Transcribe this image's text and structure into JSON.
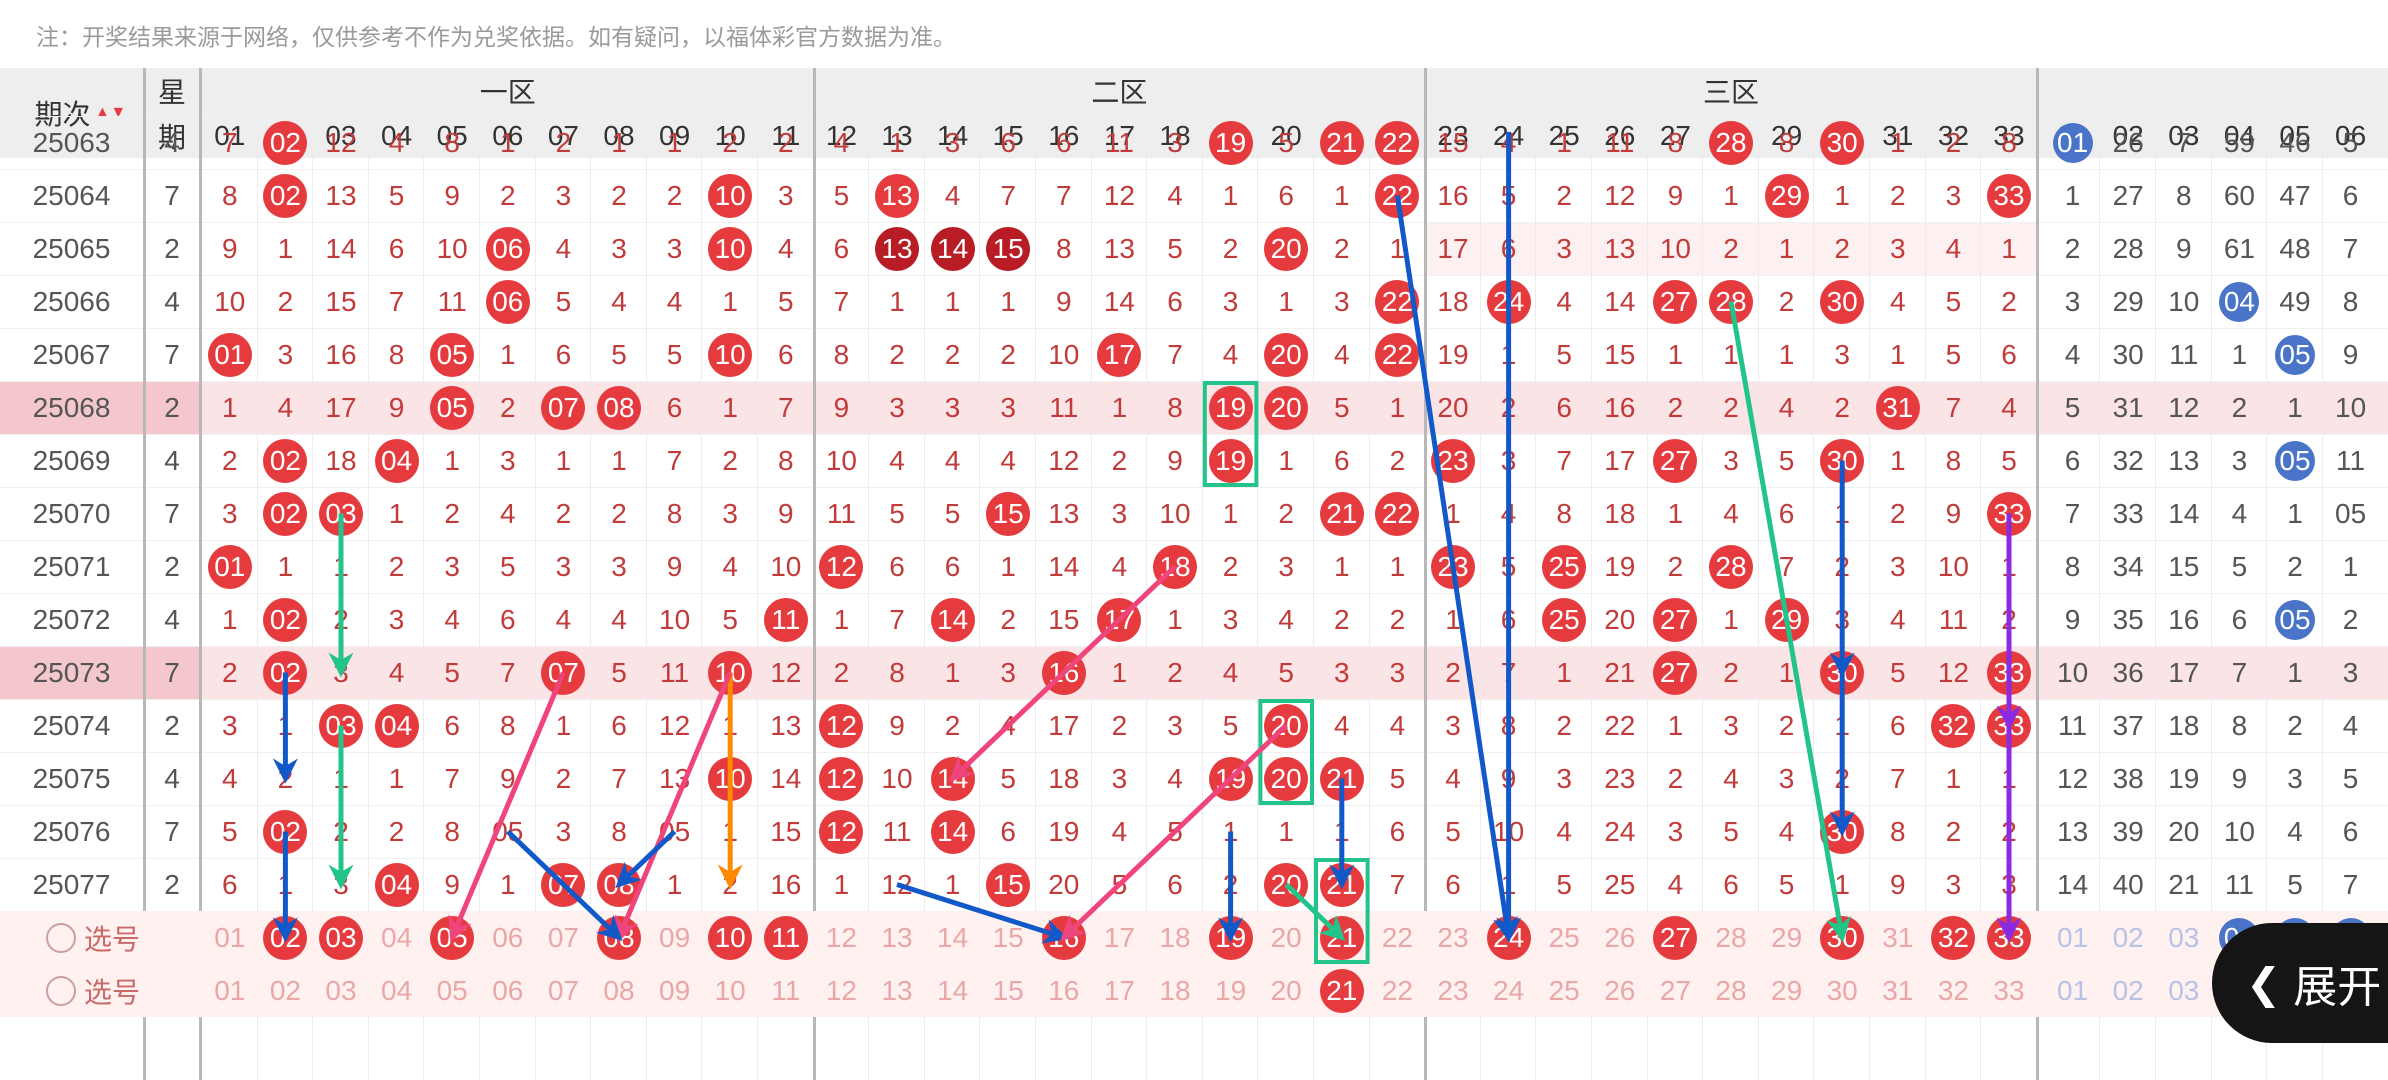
{
  "note": "注：开奖结果来源于网络，仅供参考不作为兑奖依据。如有疑问，以福体彩官方数据为准。",
  "header": {
    "issue_label": "期次",
    "sort_arrows": "▲▼",
    "week_label_top": "星",
    "week_label_bottom": "期",
    "zones": [
      "一区",
      "二区",
      "三区"
    ]
  },
  "expand_label": "展开",
  "picker_label": "选号",
  "rows": [
    {
      "issue": "25063",
      "week": "4",
      "hl": false
    },
    {
      "issue": "25064",
      "week": "7",
      "hl": false
    },
    {
      "issue": "25065",
      "week": "2",
      "hl": false
    },
    {
      "issue": "25066",
      "week": "4",
      "hl": false
    },
    {
      "issue": "25067",
      "week": "7",
      "hl": false
    },
    {
      "issue": "25068",
      "week": "2",
      "hl": true
    },
    {
      "issue": "25069",
      "week": "4",
      "hl": false
    },
    {
      "issue": "25070",
      "week": "7",
      "hl": false
    },
    {
      "issue": "25071",
      "week": "2",
      "hl": false
    },
    {
      "issue": "25072",
      "week": "4",
      "hl": false
    },
    {
      "issue": "25073",
      "week": "7",
      "hl": true
    },
    {
      "issue": "25074",
      "week": "2",
      "hl": false
    },
    {
      "issue": "25075",
      "week": "4",
      "hl": false
    },
    {
      "issue": "25076",
      "week": "7",
      "hl": false
    },
    {
      "issue": "25077",
      "week": "2",
      "hl": false
    }
  ],
  "red_omission": [
    [
      "7",
      "02",
      "12",
      "4",
      "8",
      "1",
      "2",
      "1",
      "1",
      "2",
      "2",
      "4",
      "1",
      "3",
      "6",
      "6",
      "11",
      "3",
      "19",
      "5",
      "21",
      "22",
      "15",
      "4",
      "1",
      "11",
      "8",
      "28",
      "8",
      "30",
      "1",
      "2",
      "8"
    ],
    [
      "8",
      "02",
      "13",
      "5",
      "9",
      "2",
      "3",
      "2",
      "2",
      "10",
      "3",
      "5",
      "13",
      "4",
      "7",
      "7",
      "12",
      "4",
      "1",
      "6",
      "1",
      "22",
      "16",
      "5",
      "2",
      "12",
      "9",
      "1",
      "29",
      "1",
      "2",
      "3",
      "33"
    ],
    [
      "9",
      "1",
      "14",
      "6",
      "10",
      "06",
      "4",
      "3",
      "3",
      "10",
      "4",
      "6",
      "13",
      "14",
      "15",
      "8",
      "13",
      "5",
      "2",
      "20",
      "2",
      "1",
      "17",
      "6",
      "3",
      "13",
      "10",
      "2",
      "1",
      "2",
      "3",
      "4",
      "1"
    ],
    [
      "10",
      "2",
      "15",
      "7",
      "11",
      "06",
      "5",
      "4",
      "4",
      "1",
      "5",
      "7",
      "1",
      "1",
      "1",
      "9",
      "14",
      "6",
      "3",
      "1",
      "3",
      "22",
      "18",
      "24",
      "4",
      "14",
      "27",
      "28",
      "2",
      "30",
      "4",
      "5",
      "2"
    ],
    [
      "01",
      "3",
      "16",
      "8",
      "05",
      "1",
      "6",
      "5",
      "5",
      "10",
      "6",
      "8",
      "2",
      "2",
      "2",
      "10",
      "17",
      "7",
      "4",
      "20",
      "4",
      "22",
      "19",
      "1",
      "5",
      "15",
      "1",
      "1",
      "1",
      "3",
      "1",
      "5",
      "6"
    ],
    [
      "1",
      "4",
      "17",
      "9",
      "05",
      "2",
      "07",
      "08",
      "6",
      "1",
      "7",
      "9",
      "3",
      "3",
      "3",
      "11",
      "1",
      "8",
      "19",
      "20",
      "5",
      "1",
      "20",
      "2",
      "6",
      "16",
      "2",
      "2",
      "4",
      "2",
      "31",
      "7",
      "4"
    ],
    [
      "2",
      "02",
      "18",
      "04",
      "1",
      "3",
      "1",
      "1",
      "7",
      "2",
      "8",
      "10",
      "4",
      "4",
      "4",
      "12",
      "2",
      "9",
      "19",
      "1",
      "6",
      "2",
      "23",
      "3",
      "7",
      "17",
      "27",
      "3",
      "5",
      "30",
      "1",
      "8",
      "5"
    ],
    [
      "3",
      "02",
      "03",
      "1",
      "2",
      "4",
      "2",
      "2",
      "8",
      "3",
      "9",
      "11",
      "5",
      "5",
      "15",
      "13",
      "3",
      "10",
      "1",
      "2",
      "21",
      "22",
      "1",
      "4",
      "8",
      "18",
      "1",
      "4",
      "6",
      "1",
      "2",
      "9",
      "33"
    ],
    [
      "01",
      "1",
      "1",
      "2",
      "3",
      "5",
      "3",
      "3",
      "9",
      "4",
      "10",
      "12",
      "6",
      "6",
      "1",
      "14",
      "4",
      "18",
      "2",
      "3",
      "1",
      "1",
      "23",
      "5",
      "25",
      "19",
      "2",
      "28",
      "7",
      "2",
      "3",
      "10",
      "1"
    ],
    [
      "1",
      "02",
      "2",
      "3",
      "4",
      "6",
      "4",
      "4",
      "10",
      "5",
      "11",
      "1",
      "7",
      "14",
      "2",
      "15",
      "17",
      "1",
      "3",
      "4",
      "2",
      "2",
      "1",
      "6",
      "25",
      "20",
      "27",
      "1",
      "29",
      "3",
      "4",
      "11",
      "2"
    ],
    [
      "2",
      "02",
      "3",
      "4",
      "5",
      "7",
      "07",
      "5",
      "11",
      "10",
      "12",
      "2",
      "8",
      "1",
      "3",
      "16",
      "1",
      "2",
      "4",
      "5",
      "3",
      "3",
      "2",
      "7",
      "1",
      "21",
      "27",
      "2",
      "1",
      "30",
      "5",
      "12",
      "33"
    ],
    [
      "3",
      "1",
      "03",
      "04",
      "6",
      "8",
      "1",
      "6",
      "12",
      "1",
      "13",
      "12",
      "9",
      "2",
      "4",
      "17",
      "2",
      "3",
      "5",
      "20",
      "4",
      "4",
      "3",
      "8",
      "2",
      "22",
      "1",
      "3",
      "2",
      "1",
      "6",
      "32",
      "33"
    ],
    [
      "4",
      "2",
      "1",
      "1",
      "7",
      "9",
      "2",
      "7",
      "13",
      "10",
      "14",
      "12",
      "10",
      "14",
      "5",
      "18",
      "3",
      "4",
      "19",
      "20",
      "21",
      "5",
      "4",
      "9",
      "3",
      "23",
      "2",
      "4",
      "3",
      "2",
      "7",
      "1",
      "1"
    ],
    [
      "5",
      "02",
      "2",
      "2",
      "8",
      "05",
      "3",
      "8",
      "05",
      "1",
      "15",
      "12",
      "11",
      "14",
      "6",
      "19",
      "4",
      "5",
      "1",
      "1",
      "1",
      "6",
      "5",
      "10",
      "4",
      "24",
      "3",
      "5",
      "4",
      "30",
      "8",
      "2",
      "2"
    ],
    [
      "6",
      "1",
      "3",
      "04",
      "9",
      "1",
      "07",
      "08",
      "1",
      "2",
      "16",
      "1",
      "12",
      "1",
      "15",
      "20",
      "5",
      "6",
      "2",
      "20",
      "21",
      "7",
      "6",
      "1",
      "5",
      "25",
      "4",
      "6",
      "5",
      "1",
      "9",
      "3",
      "3"
    ]
  ],
  "blue_omission": [
    [
      "01",
      "26",
      "7",
      "59",
      "46",
      "5"
    ],
    [
      "1",
      "27",
      "8",
      "60",
      "47",
      "6"
    ],
    [
      "2",
      "28",
      "9",
      "61",
      "48",
      "7"
    ],
    [
      "3",
      "29",
      "10",
      "04",
      "49",
      "8"
    ],
    [
      "4",
      "30",
      "11",
      "1",
      "05",
      "9"
    ],
    [
      "5",
      "31",
      "12",
      "2",
      "1",
      "10"
    ],
    [
      "6",
      "32",
      "13",
      "3",
      "05",
      "11"
    ],
    [
      "7",
      "33",
      "14",
      "4",
      "1",
      "05"
    ],
    [
      "8",
      "34",
      "15",
      "5",
      "2",
      "1"
    ],
    [
      "9",
      "35",
      "16",
      "6",
      "05",
      "2"
    ],
    [
      "10",
      "36",
      "17",
      "7",
      "1",
      "3"
    ],
    [
      "11",
      "37",
      "18",
      "8",
      "2",
      "4"
    ],
    [
      "12",
      "38",
      "19",
      "9",
      "3",
      "5"
    ],
    [
      "13",
      "39",
      "20",
      "10",
      "4",
      "6"
    ],
    [
      "14",
      "40",
      "21",
      "11",
      "5",
      "7"
    ]
  ],
  "picker_red_selected": [
    2,
    3,
    5,
    8,
    10,
    11,
    16,
    19,
    21,
    24,
    27,
    30,
    32,
    33
  ],
  "picker_red_row2_selected": [
    21
  ],
  "picker_blue_selected": [
    4,
    5,
    6
  ],
  "colors": {
    "red": "#e53a3e",
    "dark": "#b81d26",
    "blue": "#4a74c8",
    "green": "#23c489",
    "navy": "#1159c8",
    "pink": "#f0457c",
    "orange": "#ff8a00",
    "violet": "#8a2be2"
  }
}
